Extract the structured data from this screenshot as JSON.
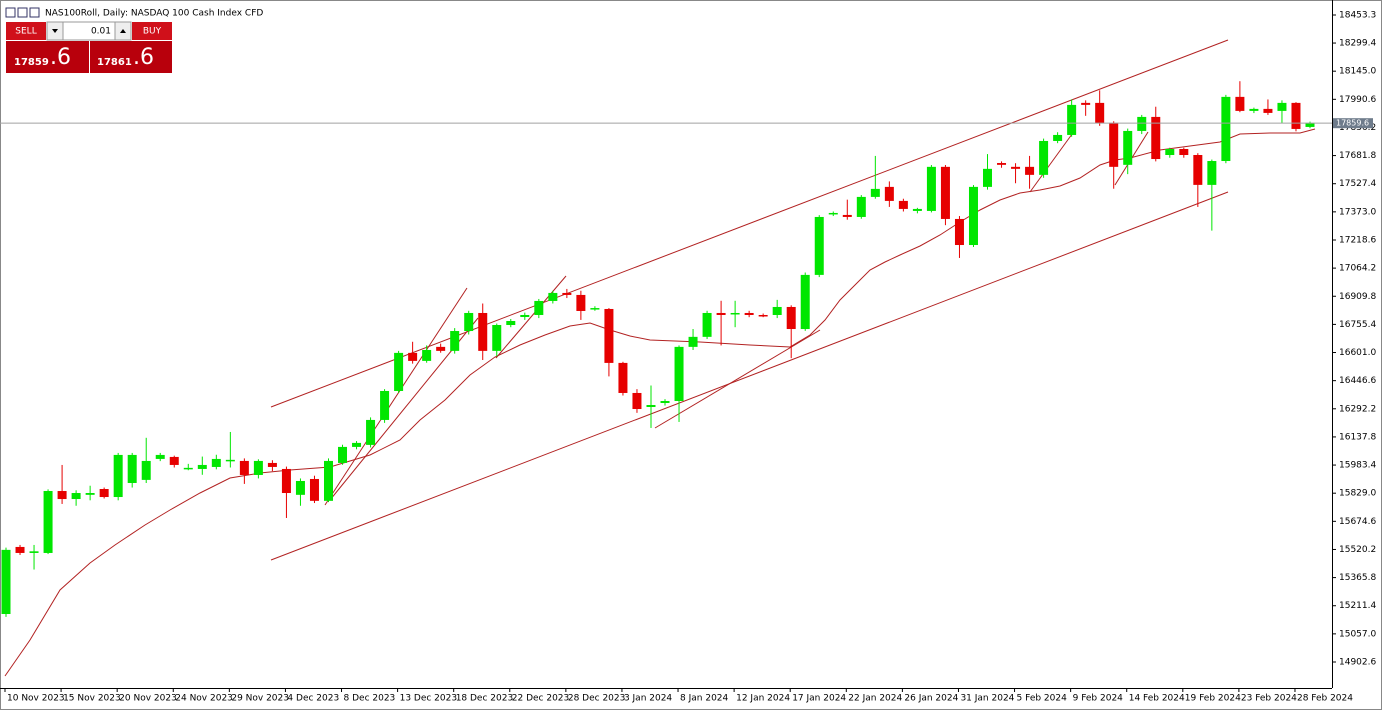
{
  "chart_data": {
    "type": "candlestick",
    "title": "NAS100Roll, Daily:  NASDAQ 100 Cash Index CFD",
    "categories": [
      "10 Nov 2023",
      null,
      null,
      null,
      "15 Nov 2023",
      null,
      null,
      null,
      "20 Nov 2023",
      null,
      null,
      null,
      "24 Nov 2023",
      null,
      null,
      null,
      "29 Nov 2023",
      null,
      null,
      null,
      "4 Dec 2023",
      null,
      null,
      null,
      "8 Dec 2023",
      null,
      null,
      null,
      "13 Dec 2023",
      null,
      null,
      null,
      "18 Dec 2023",
      null,
      null,
      null,
      "22 Dec 2023",
      null,
      null,
      null,
      "28 Dec 2023",
      null,
      null,
      null,
      "3 Jan 2024",
      null,
      null,
      null,
      "8 Jan 2024",
      null,
      null,
      null,
      "12 Jan 2024",
      null,
      null,
      null,
      "17 Jan 2024",
      null,
      null,
      null,
      "22 Jan 2024",
      null,
      null,
      null,
      "26 Jan 2024",
      null,
      null,
      null,
      "31 Jan 2024",
      null,
      null,
      null,
      "5 Feb 2024",
      null,
      null,
      null,
      "9 Feb 2024",
      null,
      null,
      null,
      "14 Feb 2024",
      null,
      null,
      null,
      "19 Feb 2024",
      null,
      null,
      null,
      "23 Feb 2024",
      null,
      null,
      null,
      "28 Feb 2024",
      null
    ],
    "open": [
      15166,
      15534,
      15501,
      15501,
      15841,
      15797,
      15820,
      15852,
      15808,
      15885,
      15902,
      16017,
      16028,
      15962,
      15962,
      15973,
      16006,
      16006,
      15929,
      15995,
      15962,
      15820,
      15907,
      15787,
      15995,
      16083,
      16094,
      16231,
      16390,
      16599,
      16555,
      16632,
      16610,
      16719,
      16818,
      16610,
      16752,
      16796,
      16807,
      16884,
      16928,
      16917,
      16840,
      16840,
      16544,
      16379,
      16302,
      16324,
      16335,
      16632,
      16687,
      16818,
      16813,
      16818,
      16807,
      16807,
      16851,
      16730,
      17027,
      17362,
      17356,
      17345,
      17455,
      17510,
      17433,
      17378,
      17378,
      17620,
      17334,
      17191,
      17510,
      17641,
      17620,
      17620,
      17576,
      17762,
      17795,
      17971,
      17971,
      17861,
      17631,
      17817,
      17894,
      17685,
      17718,
      17685,
      17521,
      17652,
      18004,
      17927,
      17938,
      17927,
      17971,
      17839
    ],
    "high": [
      15530,
      15545,
      15545,
      15850,
      15984,
      15845,
      15870,
      15860,
      16050,
      16050,
      16133,
      16050,
      16035,
      15990,
      16030,
      16040,
      16165,
      16020,
      16015,
      16010,
      15975,
      15910,
      15925,
      16020,
      16095,
      16115,
      16245,
      16400,
      16610,
      16660,
      16640,
      16650,
      16735,
      16830,
      16870,
      16760,
      16785,
      16820,
      16895,
      16940,
      16950,
      16940,
      16855,
      16845,
      16550,
      16400,
      16420,
      16345,
      16640,
      16730,
      16830,
      16885,
      16885,
      16830,
      16815,
      16890,
      16860,
      17040,
      17355,
      17375,
      17440,
      17465,
      17680,
      17540,
      17445,
      17395,
      17630,
      17630,
      17350,
      17520,
      17690,
      17650,
      17640,
      17680,
      17775,
      17810,
      17990,
      17985,
      18040,
      17870,
      17830,
      17905,
      17950,
      17725,
      17725,
      17695,
      17660,
      18015,
      18090,
      17945,
      17990,
      17985,
      17975,
      17868
    ],
    "low": [
      15150,
      15490,
      15410,
      15495,
      15770,
      15760,
      15790,
      15800,
      15790,
      15860,
      15885,
      16005,
      15970,
      15955,
      15930,
      15960,
      15970,
      15880,
      15910,
      15950,
      15693,
      15760,
      15775,
      15780,
      15985,
      16070,
      16080,
      16215,
      16380,
      16540,
      16545,
      16600,
      16595,
      16700,
      16560,
      16580,
      16740,
      16780,
      16790,
      16870,
      16900,
      16780,
      16830,
      16470,
      16365,
      16270,
      16187,
      16310,
      16220,
      16615,
      16675,
      16640,
      16740,
      16795,
      16795,
      16790,
      16570,
      16720,
      17015,
      17350,
      17330,
      17335,
      17445,
      17400,
      17375,
      17365,
      17370,
      17300,
      17120,
      17180,
      17495,
      17615,
      17530,
      17500,
      17560,
      17750,
      17785,
      17900,
      17845,
      17500,
      17580,
      17800,
      17650,
      17670,
      17670,
      17400,
      17270,
      17640,
      17920,
      17915,
      17905,
      17860,
      17815,
      17832
    ],
    "close": [
      15518,
      15501,
      15510,
      15841,
      15797,
      15830,
      15830,
      15808,
      16039,
      16039,
      16006,
      16039,
      15984,
      15968,
      15984,
      16017,
      16012,
      15929,
      16006,
      15973,
      15830,
      15896,
      15787,
      16006,
      16083,
      16105,
      16231,
      16390,
      16599,
      16555,
      16615,
      16610,
      16719,
      16818,
      16610,
      16752,
      16774,
      16807,
      16884,
      16928,
      16917,
      16829,
      16845,
      16544,
      16379,
      16291,
      16313,
      16335,
      16632,
      16687,
      16818,
      16807,
      16818,
      16807,
      16802,
      16851,
      16730,
      17027,
      17345,
      17367,
      17345,
      17455,
      17499,
      17433,
      17389,
      17389,
      17620,
      17334,
      17191,
      17510,
      17609,
      17631,
      17609,
      17576,
      17762,
      17795,
      17960,
      17960,
      17861,
      17620,
      17817,
      17894,
      17663,
      17718,
      17685,
      17521,
      17652,
      18004,
      17927,
      17938,
      17916,
      17971,
      17828,
      17861
    ],
    "up_color": "#00e600",
    "down_color": "#e60000",
    "ylim": [
      14759.9,
      18513.7
    ],
    "yticks": [
      18453.3,
      18299.4,
      {
        "value": 18145,
        "label": "18145.0"
      },
      17990.6,
      17836.2,
      17681.8,
      17527.4,
      {
        "value": 17373,
        "label": "17373.0"
      },
      17218.6,
      17064.2,
      16909.8,
      16755.4,
      {
        "value": 16601,
        "label": "16601.0"
      },
      16446.6,
      16292.2,
      16137.8,
      15983.4,
      {
        "value": 15829,
        "label": "15829.0"
      },
      15674.6,
      15520.2,
      15365.8,
      15211.4,
      {
        "value": 15057,
        "label": "15057.0"
      },
      14902.6
    ],
    "current_price": 17859.6,
    "grid": false
  },
  "trade_panel": {
    "sell_label": "SELL",
    "buy_label": "BUY",
    "lot": "0.01",
    "bid_main": "17859",
    "bid_frac": ".6",
    "ask_main": "17861",
    "ask_frac": ".6"
  }
}
